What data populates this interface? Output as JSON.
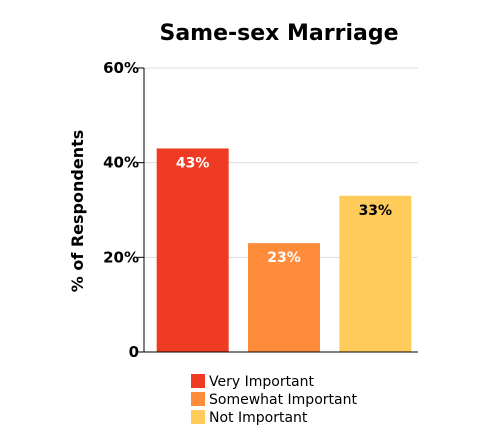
{
  "chart_data": {
    "type": "bar",
    "title": "Same-sex Marriage",
    "xlabel": "",
    "ylabel": "% of Respondents",
    "ylim": [
      0,
      60
    ],
    "yticks": [
      {
        "value": 0,
        "label": "0"
      },
      {
        "value": 20,
        "label": "20%"
      },
      {
        "value": 40,
        "label": "40%"
      },
      {
        "value": 60,
        "label": "60%"
      }
    ],
    "grid": true,
    "legend": "bottom",
    "categories": [
      "Very Important",
      "Somewhat Important",
      "Not Important"
    ],
    "values": [
      43,
      23,
      33
    ],
    "data_labels": [
      "43%",
      "23%",
      "33%"
    ],
    "colors": [
      "#ef3b23",
      "#ff8c3a",
      "#ffcc5c"
    ],
    "label_colors": [
      "#ffffff",
      "#ffffff",
      "#000000"
    ]
  }
}
